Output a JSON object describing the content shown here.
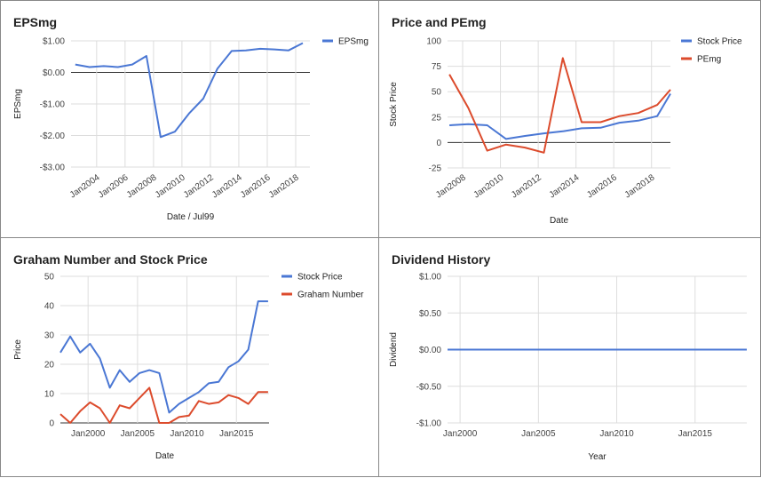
{
  "chart_data": [
    {
      "type": "line",
      "title": "EPSmg",
      "xlabel": "Date / Jul99",
      "ylabel": "EPSmg",
      "xlim": [
        2002.2,
        2019
      ],
      "ylim": [
        -3,
        1
      ],
      "y_ticks": [
        1,
        0,
        -1,
        -2,
        -3
      ],
      "y_tick_labels": [
        "$1.00",
        "$0.00",
        "-$1.00",
        "-$2.00",
        "-$3.00"
      ],
      "x_ticks": [
        2004,
        2006,
        2008,
        2010,
        2012,
        2014,
        2016,
        2018
      ],
      "x_tick_labels": [
        "Jan2004",
        "Jan2006",
        "Jan2008",
        "Jan2010",
        "Jan2012",
        "Jan2014",
        "Jan2016",
        "Jan2018"
      ],
      "legend_position": "top-right",
      "series": [
        {
          "name": "EPSmg",
          "color": "#4a77d4",
          "x": [
            2002.5,
            2003.5,
            2004.5,
            2005.5,
            2006.5,
            2007.5,
            2008.5,
            2009.5,
            2010.5,
            2011.5,
            2012.5,
            2013.5,
            2014.5,
            2015.5,
            2016.5,
            2017.5,
            2018.5
          ],
          "y": [
            0.25,
            0.17,
            0.2,
            0.17,
            0.25,
            0.52,
            -2.05,
            -1.88,
            -1.3,
            -0.83,
            0.12,
            0.68,
            0.7,
            0.75,
            0.73,
            0.7,
            0.93
          ]
        }
      ]
    },
    {
      "type": "line",
      "title": "Price and PEmg",
      "xlabel": "Date",
      "ylabel": "Stock Price",
      "xlim": [
        2007.2,
        2019
      ],
      "ylim": [
        -25,
        100
      ],
      "y_ticks": [
        100,
        75,
        50,
        25,
        0,
        -25
      ],
      "y_tick_labels": [
        "100",
        "75",
        "50",
        "25",
        "0",
        "-25"
      ],
      "x_ticks": [
        2008,
        2010,
        2012,
        2014,
        2016,
        2018
      ],
      "x_tick_labels": [
        "Jan2008",
        "Jan2010",
        "Jan2012",
        "Jan2014",
        "Jan2016",
        "Jan2018"
      ],
      "legend_position": "top-right",
      "series": [
        {
          "name": "Stock Price",
          "color": "#4a77d4",
          "x": [
            2007.3,
            2008.3,
            2009.3,
            2010.3,
            2011.3,
            2012.3,
            2013.3,
            2014.3,
            2015.3,
            2016.3,
            2017.3,
            2018.3,
            2019
          ],
          "y": [
            17,
            18,
            17,
            3.5,
            6.5,
            9,
            11,
            14,
            14.5,
            19.5,
            21.5,
            26,
            48
          ]
        },
        {
          "name": "PEmg",
          "color": "#dc4b2c",
          "x": [
            2007.3,
            2008.3,
            2009.3,
            2010.3,
            2011.3,
            2012.3,
            2013.3,
            2014.3,
            2015.3,
            2016.3,
            2017.3,
            2018.3,
            2019
          ],
          "y": [
            67,
            34,
            -8,
            -2,
            -5,
            -10,
            83,
            20,
            20,
            26,
            29,
            37,
            52
          ]
        }
      ]
    },
    {
      "type": "line",
      "title": "Graham Number and Stock Price",
      "xlabel": "Date",
      "ylabel": "Price",
      "xlim": [
        1997.2,
        2018.3
      ],
      "ylim": [
        0,
        50
      ],
      "y_ticks": [
        50,
        40,
        30,
        20,
        10,
        0
      ],
      "y_tick_labels": [
        "50",
        "40",
        "30",
        "20",
        "10",
        "0"
      ],
      "x_ticks": [
        2000,
        2005,
        2010,
        2015
      ],
      "x_tick_labels": [
        "Jan2000",
        "Jan2005",
        "Jan2010",
        "Jan2015"
      ],
      "legend_position": "top-right",
      "series": [
        {
          "name": "Stock Price",
          "color": "#4a77d4",
          "x": [
            1997.2,
            1998.2,
            1999.2,
            2000.2,
            2001.2,
            2002.2,
            2003.2,
            2004.2,
            2005.2,
            2006.2,
            2007.2,
            2008.2,
            2009.2,
            2010.2,
            2011.2,
            2012.2,
            2013.2,
            2014.2,
            2015.2,
            2016.2,
            2017.2,
            2018.2
          ],
          "y": [
            24,
            29.5,
            24,
            27,
            22,
            12,
            18,
            14,
            17,
            18,
            17,
            3.5,
            6.5,
            8.5,
            10.5,
            13.5,
            14,
            19,
            21,
            25,
            41.5,
            41.5
          ]
        },
        {
          "name": "Graham Number",
          "color": "#dc4b2c",
          "x": [
            1997.2,
            1998.2,
            1999.2,
            2000.2,
            2001.2,
            2002.2,
            2003.2,
            2004.2,
            2005.2,
            2006.2,
            2007.2,
            2008.2,
            2009.2,
            2010.2,
            2011.2,
            2012.2,
            2013.2,
            2014.2,
            2015.2,
            2016.2,
            2017.2,
            2018.2
          ],
          "y": [
            3,
            0,
            4,
            7,
            5,
            0,
            6,
            5,
            8.5,
            12,
            0,
            0,
            2,
            2.5,
            7.5,
            6.5,
            7,
            9.5,
            8.5,
            6.5,
            10.5,
            10.5
          ]
        }
      ]
    },
    {
      "type": "line",
      "title": "Dividend History",
      "xlabel": "Year",
      "ylabel": "Dividend",
      "xlim": [
        1999.2,
        2018.3
      ],
      "ylim": [
        -1,
        1
      ],
      "y_ticks": [
        1,
        0.5,
        0,
        -0.5,
        -1
      ],
      "y_tick_labels": [
        "$1.00",
        "$0.50",
        "$0.00",
        "-$0.50",
        "-$1.00"
      ],
      "x_ticks": [
        2000,
        2005,
        2010,
        2015
      ],
      "x_tick_labels": [
        "Jan2000",
        "Jan2005",
        "Jan2010",
        "Jan2015"
      ],
      "series": [
        {
          "color": "#4a77d4",
          "x": [
            1999.2,
            2018.3
          ],
          "y": [
            0,
            0
          ]
        }
      ]
    }
  ]
}
